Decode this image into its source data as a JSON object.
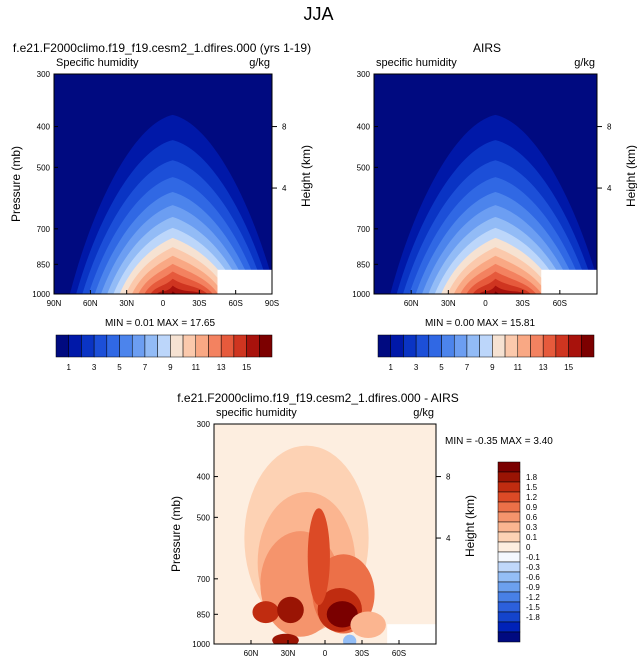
{
  "title": "JJA",
  "colors": {
    "seq": [
      "#000a80",
      "#0018a8",
      "#0a34c4",
      "#1c4fd8",
      "#3068e4",
      "#4c84ec",
      "#6c9ef2",
      "#92bbf6",
      "#bcd6fa",
      "#f6e2d2",
      "#fbc9ac",
      "#f9a884",
      "#f38260",
      "#e65a3c",
      "#cf3520",
      "#a8120c",
      "#7c0000"
    ],
    "div": [
      "#000a80",
      "#0022b8",
      "#1444cc",
      "#2c60dc",
      "#4880e6",
      "#6ca0ee",
      "#94bef6",
      "#c0d8fa",
      "#f4f8fe",
      "#fdeee0",
      "#fdd2b4",
      "#fbb590",
      "#f5946c",
      "#ec7048",
      "#dc4a26",
      "#c02c10",
      "#9a1404",
      "#7a0000"
    ]
  },
  "chart_data": [
    {
      "type": "contour",
      "title": "f.e21.F2000climo.f19_f19.cesm2_1.dfires.000 (yrs 1-19)",
      "left_title": "Specific humidity",
      "right_title": "g/kg",
      "ylabel": "Pressure (mb)",
      "ylabel_right": "Height (km)",
      "x_ticks": [
        "90N",
        "60N",
        "30N",
        "0",
        "30S",
        "60S",
        "90S"
      ],
      "y_ticks": [
        "300",
        "400",
        "500",
        "700",
        "850",
        "1000"
      ],
      "y_ticks_right": [
        "8",
        "4"
      ],
      "stats": "MIN =  0.01   MAX =  17.65",
      "peak": 17.65
    },
    {
      "type": "contour",
      "title": "AIRS",
      "left_title": "specific humidity",
      "right_title": "g/kg",
      "ylabel_right": "Height (km)",
      "x_ticks": [
        "60N",
        "30N",
        "0",
        "30S",
        "60S"
      ],
      "y_ticks": [
        "300",
        "400",
        "500",
        "700",
        "850",
        "1000"
      ],
      "y_ticks_right": [
        "8",
        "4"
      ],
      "stats": "MIN =  0.00   MAX =  15.81",
      "peak": 15.81
    },
    {
      "type": "contour",
      "title": "f.e21.F2000climo.f19_f19.cesm2_1.dfires.000 - AIRS",
      "left_title": "specific humidity",
      "right_title": "g/kg",
      "ylabel": "Pressure (mb)",
      "ylabel_right": "Height (km)",
      "x_ticks": [
        "60N",
        "30N",
        "0",
        "30S",
        "60S"
      ],
      "y_ticks": [
        "300",
        "400",
        "500",
        "700",
        "850",
        "1000"
      ],
      "y_ticks_right": [
        "8",
        "4"
      ],
      "stats": "MIN =  -0.35   MAX =   3.40"
    }
  ],
  "colorbar_seq": {
    "labels": [
      "1",
      "3",
      "5",
      "7",
      "9",
      "11",
      "13",
      "15"
    ]
  },
  "colorbar_div": {
    "labels": [
      "1.8",
      "1.5",
      "1.2",
      "0.9",
      "0.6",
      "0.3",
      "0.1",
      "0",
      "-0.1",
      "-0.3",
      "-0.6",
      "-0.9",
      "-1.2",
      "-1.5",
      "-1.8"
    ]
  }
}
